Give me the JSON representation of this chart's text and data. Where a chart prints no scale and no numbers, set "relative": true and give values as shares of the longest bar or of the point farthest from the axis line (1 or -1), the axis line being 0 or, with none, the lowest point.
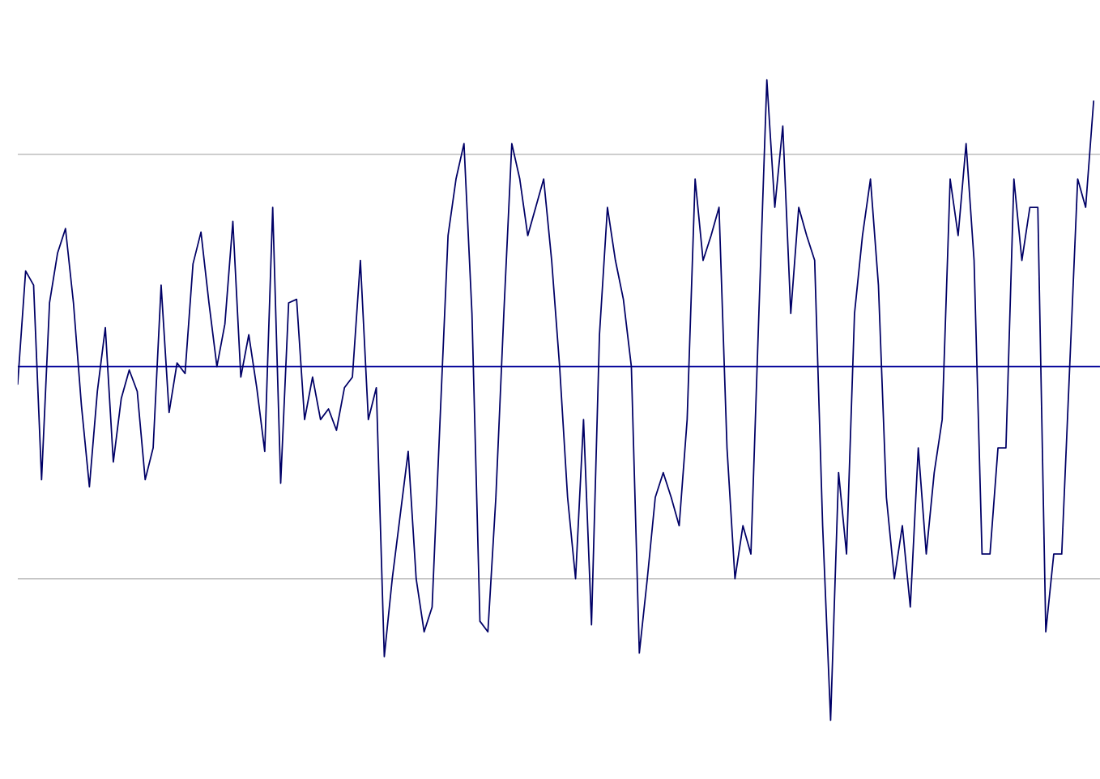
{
  "chart_data": {
    "type": "line",
    "relative": true,
    "categories": [
      null,
      null,
      null,
      null,
      null,
      null,
      null,
      null,
      null,
      null,
      null,
      null,
      null,
      null,
      null,
      null,
      null,
      null,
      null,
      null,
      null,
      null,
      null,
      null,
      null,
      null,
      null,
      null,
      null,
      null,
      null,
      null,
      null,
      null,
      null,
      null,
      null,
      null,
      null,
      null,
      null,
      null,
      null,
      null,
      null,
      null,
      null,
      null,
      null,
      null,
      null,
      null,
      null,
      null,
      null,
      null,
      null,
      null,
      null,
      null,
      null,
      null,
      null,
      null,
      null,
      null,
      null,
      null,
      null,
      null,
      null,
      null,
      null,
      null,
      null,
      null,
      null,
      null,
      null,
      null,
      null,
      null,
      null,
      null,
      null,
      null,
      null,
      null,
      null,
      null,
      null,
      null,
      null,
      null,
      null,
      null,
      null,
      null,
      null,
      null,
      null,
      null,
      null,
      null,
      null,
      null,
      null,
      null,
      null,
      null,
      null,
      null,
      null,
      null,
      null,
      null,
      null,
      null,
      null,
      null,
      null,
      null,
      null,
      null,
      null,
      null,
      null,
      null,
      null,
      null,
      null,
      null,
      null,
      null,
      null,
      null
    ],
    "series": [
      {
        "color": "#000066",
        "values": [
          -0.05,
          0.27,
          0.23,
          -0.32,
          0.18,
          0.32,
          0.39,
          0.18,
          -0.11,
          -0.34,
          -0.07,
          0.11,
          -0.27,
          -0.09,
          -0.01,
          -0.07,
          -0.32,
          -0.23,
          0.23,
          -0.13,
          0.01,
          -0.02,
          0.29,
          0.38,
          0.18,
          0,
          0.12,
          0.41,
          -0.03,
          0.09,
          -0.06,
          -0.24,
          0.45,
          -0.33,
          0.18,
          0.19,
          -0.15,
          -0.03,
          -0.15,
          -0.12,
          -0.18,
          -0.06,
          -0.03,
          0.3,
          -0.15,
          -0.06,
          -0.82,
          -0.6,
          -0.42,
          -0.24,
          -0.6,
          -0.75,
          -0.68,
          -0.15,
          0.37,
          0.53,
          0.63,
          0.15,
          -0.72,
          -0.75,
          -0.37,
          0.15,
          0.63,
          0.53,
          0.37,
          0.45,
          0.53,
          0.3,
          0,
          -0.37,
          -0.6,
          -0.15,
          -0.73,
          0.09,
          0.45,
          0.3,
          0.19,
          0,
          -0.81,
          -0.6,
          -0.37,
          -0.3,
          -0.37,
          -0.45,
          -0.15,
          0.53,
          0.3,
          0.37,
          0.45,
          -0.23,
          -0.6,
          -0.45,
          -0.53,
          0.15,
          0.81,
          0.45,
          0.68,
          0.15,
          0.45,
          0.37,
          0.3,
          -0.45,
          -1,
          -0.3,
          -0.53,
          0.15,
          0.37,
          0.53,
          0.23,
          -0.37,
          -0.6,
          -0.45,
          -0.68,
          -0.23,
          -0.53,
          -0.3,
          -0.15,
          0.53,
          0.37,
          0.63,
          0.3,
          -0.53,
          -0.53,
          -0.23,
          -0.23,
          0.53,
          0.3,
          0.45,
          0.45,
          -0.75,
          -0.53,
          -0.53,
          0,
          0.53,
          0.45,
          0.75
        ]
      }
    ],
    "ref_lines": [
      {
        "axis": "y",
        "value": 0.6,
        "color": "#c0c0c0"
      },
      {
        "axis": "y",
        "value": -0.6,
        "color": "#c0c0c0"
      },
      {
        "axis": "y",
        "value": 0,
        "color": "#000099"
      }
    ]
  }
}
